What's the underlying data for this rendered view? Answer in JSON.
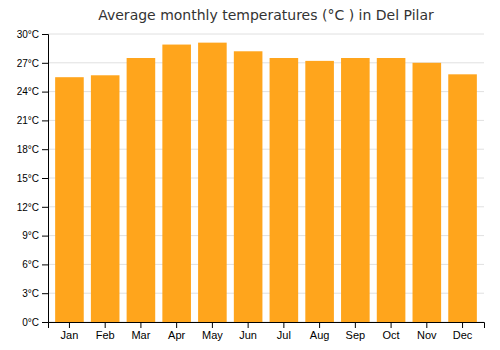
{
  "chart_data": {
    "type": "bar",
    "title": "Average monthly temperatures (°C ) in Del Pilar",
    "categories": [
      "Jan",
      "Feb",
      "Mar",
      "Apr",
      "May",
      "Jun",
      "Jul",
      "Aug",
      "Sep",
      "Oct",
      "Nov",
      "Dec"
    ],
    "values": [
      25.5,
      25.7,
      27.5,
      28.9,
      29.1,
      28.2,
      27.5,
      27.2,
      27.5,
      27.5,
      27.0,
      25.8
    ],
    "color": "#ffa51c",
    "ylim": [
      0,
      30
    ],
    "yticks": [
      {
        "value": 0,
        "label": "0°C"
      },
      {
        "value": 3,
        "label": "3°C"
      },
      {
        "value": 6,
        "label": "6°C"
      },
      {
        "value": 9,
        "label": "9°C"
      },
      {
        "value": 12,
        "label": "12°C"
      },
      {
        "value": 15,
        "label": "15°C"
      },
      {
        "value": 18,
        "label": "18°C"
      },
      {
        "value": 21,
        "label": "21°C"
      },
      {
        "value": 24,
        "label": "24°C"
      },
      {
        "value": 27,
        "label": "27°C"
      },
      {
        "value": 30,
        "label": "30°C"
      }
    ],
    "grid": true
  }
}
